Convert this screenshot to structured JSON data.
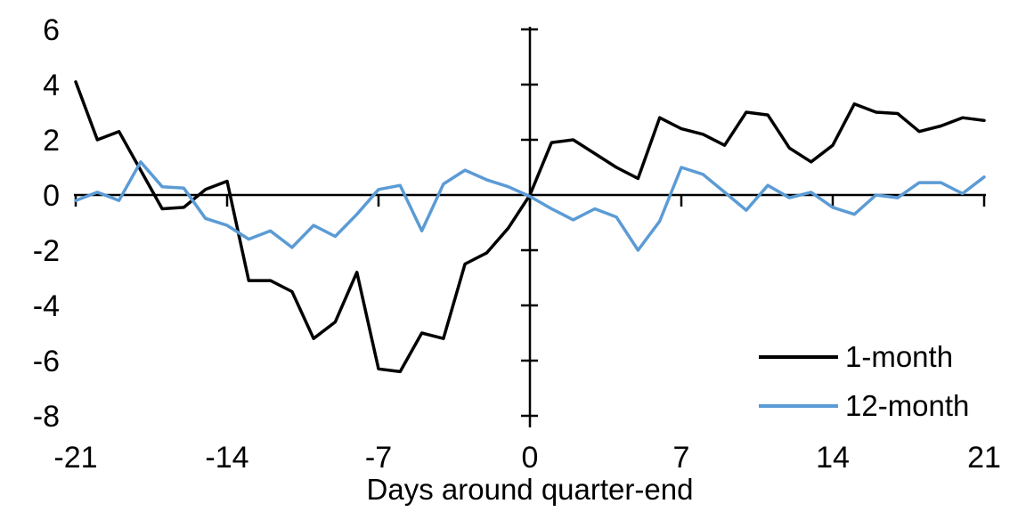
{
  "chart_data": {
    "type": "line",
    "title": "",
    "xlabel": "Days around quarter-end",
    "ylabel": "",
    "xlim": [
      -21,
      21
    ],
    "ylim": [
      -8,
      6
    ],
    "x_ticks": [
      -21,
      -14,
      -7,
      0,
      7,
      14,
      21
    ],
    "y_ticks": [
      6,
      4,
      2,
      0,
      -2,
      -4,
      -6,
      -8
    ],
    "grid": false,
    "legend_position": "inside-bottom-right",
    "axis_color": "#000000",
    "x": [
      -21,
      -20,
      -19,
      -18,
      -17,
      -16,
      -15,
      -14,
      -13,
      -12,
      -11,
      -10,
      -9,
      -8,
      -7,
      -6,
      -5,
      -4,
      -3,
      -2,
      -1,
      0,
      1,
      2,
      3,
      4,
      5,
      6,
      7,
      8,
      9,
      10,
      11,
      12,
      13,
      14,
      15,
      16,
      17,
      18,
      19,
      20,
      21
    ],
    "series": [
      {
        "name": "1-month",
        "color": "#000000",
        "values": [
          4.1,
          2.0,
          2.3,
          0.9,
          -0.5,
          -0.45,
          0.2,
          0.5,
          -3.1,
          -3.1,
          -3.5,
          -5.2,
          -4.6,
          -2.8,
          -6.3,
          -6.4,
          -5.0,
          -5.2,
          -2.5,
          -2.1,
          -1.2,
          0.0,
          1.9,
          2.0,
          1.5,
          1.0,
          0.6,
          2.8,
          2.4,
          2.2,
          1.8,
          3.0,
          2.9,
          1.7,
          1.2,
          1.8,
          3.3,
          3.0,
          2.95,
          2.3,
          2.5,
          2.8,
          2.7
        ]
      },
      {
        "name": "12-month",
        "color": "#5B9BD5",
        "values": [
          -0.2,
          0.1,
          -0.2,
          1.2,
          0.3,
          0.25,
          -0.85,
          -1.1,
          -1.6,
          -1.3,
          -1.9,
          -1.1,
          -1.5,
          -0.7,
          0.2,
          0.35,
          -1.3,
          0.4,
          0.9,
          0.55,
          0.3,
          -0.05,
          -0.5,
          -0.9,
          -0.5,
          -0.8,
          -2.0,
          -0.95,
          1.0,
          0.75,
          0.1,
          -0.55,
          0.35,
          -0.1,
          0.1,
          -0.45,
          -0.7,
          0.0,
          -0.1,
          0.45,
          0.45,
          0.05,
          0.65
        ]
      }
    ]
  }
}
